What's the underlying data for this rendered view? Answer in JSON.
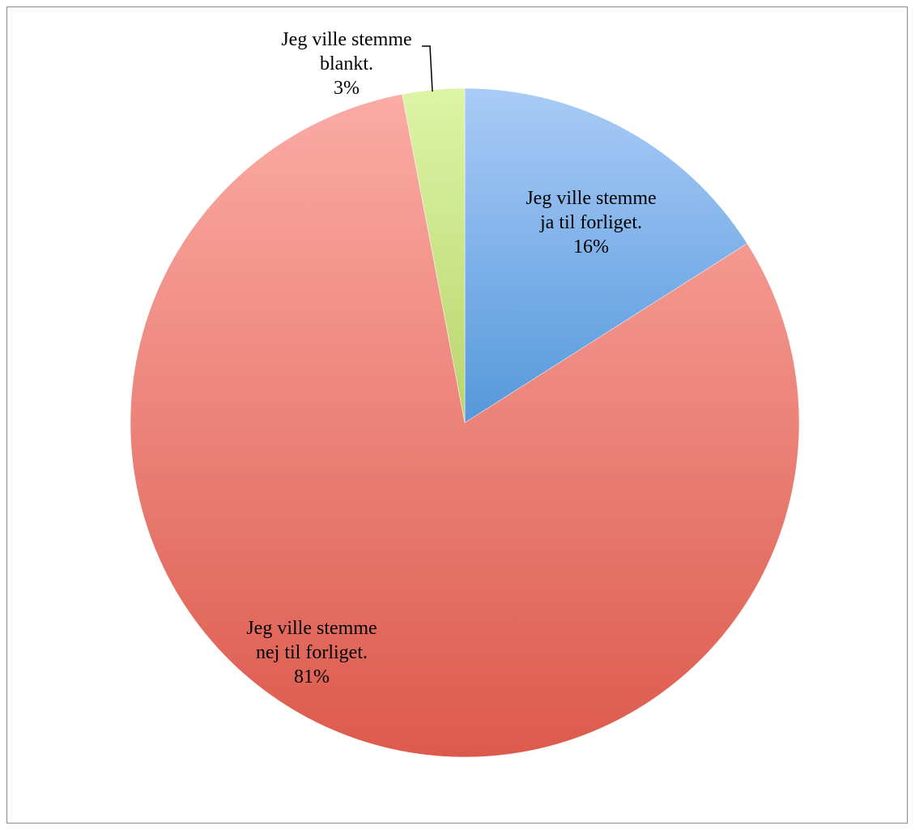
{
  "chart_data": {
    "type": "pie",
    "title": "",
    "slices": [
      {
        "label_lines": [
          "Jeg ville stemme",
          "ja til forliget."
        ],
        "value": 16,
        "value_label": "16%",
        "color": "#6fa1e3",
        "grad_top": "#a9cbf7",
        "grad_bottom": "#5598db"
      },
      {
        "label_lines": [
          "Jeg ville stemme",
          "nej til forliget."
        ],
        "value": 81,
        "value_label": "81%",
        "color": "#e9756b",
        "grad_top": "#fbaba5",
        "grad_bottom": "#dc5a4c"
      },
      {
        "label_lines": [
          "Jeg ville stemme",
          "blankt."
        ],
        "value": 3,
        "value_label": "3%",
        "color": "#c9e492",
        "grad_top": "#ddf4a6",
        "grad_bottom": "#b9d46c"
      }
    ],
    "start_angle_deg": 0,
    "direction": "clockwise",
    "legend": "none"
  }
}
